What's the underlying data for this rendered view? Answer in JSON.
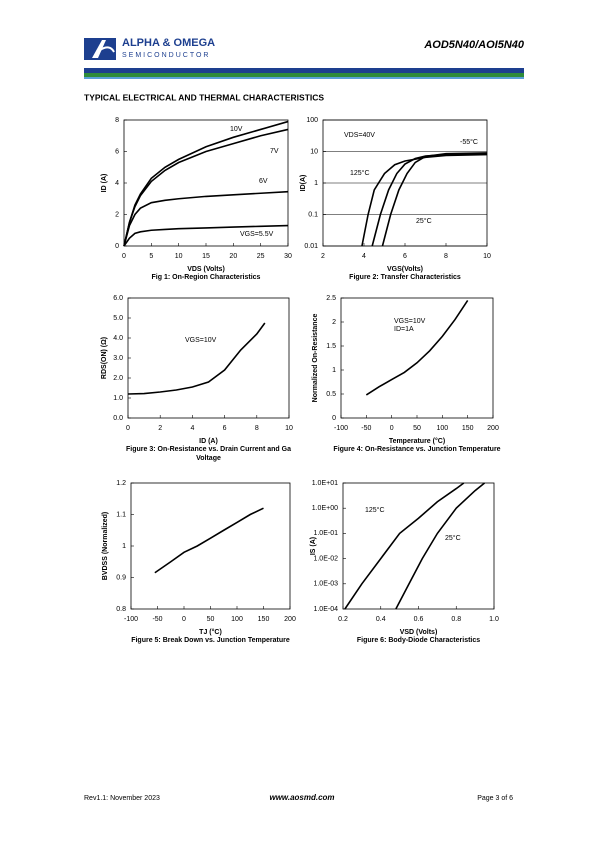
{
  "header": {
    "logo_text": "ALPHA & OMEGA",
    "logo_subtext": "SEMICONDUCTOR",
    "part_number": "AOD5N40/AOI5N40"
  },
  "section_title": "TYPICAL ELECTRICAL AND THERMAL CHARACTERISTICS",
  "chart_data": [
    {
      "type": "line",
      "caption": [
        "Fig 1: On-Region Characteristics"
      ],
      "xlabel": "VDS (Volts)",
      "ylabel": "ID (A)",
      "xlim": [
        0,
        30
      ],
      "xticks": [
        0,
        5,
        10,
        15,
        20,
        25,
        30
      ],
      "ylim": [
        0,
        8
      ],
      "yticks": [
        0,
        2,
        4,
        6,
        8
      ],
      "grid": false,
      "x": [
        0,
        1,
        2,
        3,
        5,
        7.5,
        10,
        15,
        20,
        25,
        30
      ],
      "series": [
        {
          "name": "10V",
          "color": "#000000",
          "values": [
            0,
            1.5,
            2.6,
            3.3,
            4.3,
            5.0,
            5.5,
            6.3,
            6.9,
            7.4,
            7.9
          ]
        },
        {
          "name": "7V",
          "color": "#000000",
          "values": [
            0,
            1.5,
            2.5,
            3.2,
            4.1,
            4.8,
            5.3,
            6.0,
            6.5,
            7.0,
            7.4
          ]
        },
        {
          "name": "6V",
          "color": "#000000",
          "values": [
            0,
            1.3,
            2.0,
            2.4,
            2.75,
            2.9,
            3.0,
            3.15,
            3.25,
            3.35,
            3.45
          ]
        },
        {
          "name": "VGS=5.5V",
          "color": "#000000",
          "values": [
            0,
            0.5,
            0.8,
            0.9,
            1.0,
            1.05,
            1.1,
            1.15,
            1.2,
            1.25,
            1.3
          ]
        }
      ]
    },
    {
      "type": "line",
      "caption": [
        "Figure 2: Transfer Characteristics"
      ],
      "xlabel": "VGS(Volts)",
      "ylabel": "ID(A)",
      "xlim": [
        2,
        10
      ],
      "xticks": [
        2,
        4,
        6,
        8,
        10
      ],
      "ylim": [
        0.01,
        100
      ],
      "yticks": [
        0.01,
        0.1,
        1,
        10,
        100
      ],
      "ylog": true,
      "grid": true,
      "annotations": [
        "VDS=40V"
      ],
      "series": [
        {
          "name": "125°C",
          "color": "#000000",
          "x": [
            3.9,
            4.2,
            4.5,
            5.0,
            5.5,
            6,
            7,
            8,
            10
          ],
          "values": [
            0.01,
            0.1,
            0.6,
            2,
            3.8,
            5,
            6.5,
            7.5,
            8
          ]
        },
        {
          "name": "25°C",
          "color": "#000000",
          "x": [
            4.4,
            4.8,
            5.2,
            5.6,
            6,
            6.5,
            7,
            8,
            10
          ],
          "values": [
            0.01,
            0.1,
            0.6,
            2,
            4,
            6,
            7.2,
            8,
            8.5
          ]
        },
        {
          "name": "-55°C",
          "color": "#000000",
          "x": [
            4.9,
            5.3,
            5.7,
            6.1,
            6.5,
            7,
            8,
            10
          ],
          "values": [
            0.01,
            0.1,
            0.6,
            2,
            4.5,
            7,
            8.5,
            9
          ]
        }
      ]
    },
    {
      "type": "line",
      "caption": [
        "Figure 3: On-Resistance vs. Drain Current and Ga",
        "Voltage"
      ],
      "xlabel": "ID (A)",
      "ylabel": "RDS(ON) (Ω)",
      "xlim": [
        0,
        10
      ],
      "xticks": [
        0,
        2,
        4,
        6,
        8,
        10
      ],
      "ylim": [
        0,
        6
      ],
      "yticks": [
        {
          "value": 0,
          "label": "0.0"
        },
        {
          "value": 1,
          "label": "1.0"
        },
        {
          "value": 2,
          "label": "2.0"
        },
        {
          "value": 3,
          "label": "3.0"
        },
        {
          "value": 4,
          "label": "4.0"
        },
        {
          "value": 5,
          "label": "5.0"
        },
        {
          "value": 6,
          "label": "6.0"
        }
      ],
      "grid": false,
      "series": [
        {
          "name": "VGS=10V",
          "color": "#000000",
          "x": [
            0,
            1,
            2,
            3,
            4,
            5,
            6,
            7,
            8,
            8.5
          ],
          "values": [
            1.2,
            1.22,
            1.3,
            1.4,
            1.55,
            1.8,
            2.4,
            3.4,
            4.2,
            4.75
          ]
        }
      ]
    },
    {
      "type": "line",
      "caption": [
        "Figure 4: On-Resistance vs. Junction Temperature"
      ],
      "xlabel": "Temperature (°C)",
      "ylabel": "Normalized On-Resistance",
      "xlim": [
        -100,
        200
      ],
      "xticks": [
        -100,
        -50,
        0,
        50,
        100,
        150,
        200
      ],
      "ylim": [
        0,
        2.5
      ],
      "yticks": [
        0,
        0.5,
        1,
        1.5,
        2,
        2.5
      ],
      "grid": false,
      "annotations": [
        "VGS=10V",
        "ID=1A"
      ],
      "series": [
        {
          "name": "",
          "color": "#000000",
          "x": [
            -50,
            -25,
            0,
            25,
            50,
            75,
            100,
            125,
            150
          ],
          "values": [
            0.48,
            0.65,
            0.8,
            0.95,
            1.15,
            1.4,
            1.7,
            2.05,
            2.45
          ]
        }
      ]
    },
    {
      "type": "line",
      "caption": [
        "Figure 5: Break Down vs. Junction Temperature"
      ],
      "xlabel": "TJ (°C)",
      "ylabel": "BVDSS (Normalized)",
      "xlim": [
        -100,
        200
      ],
      "xticks": [
        -100,
        -50,
        0,
        50,
        100,
        150,
        200
      ],
      "ylim": [
        0.8,
        1.2
      ],
      "yticks": [
        0.8,
        0.9,
        1,
        1.1,
        1.2
      ],
      "grid": false,
      "series": [
        {
          "name": "",
          "color": "#000000",
          "x": [
            -55,
            -25,
            0,
            25,
            50,
            75,
            100,
            125,
            150
          ],
          "values": [
            0.915,
            0.95,
            0.98,
            1.0,
            1.025,
            1.05,
            1.075,
            1.1,
            1.12
          ]
        }
      ]
    },
    {
      "type": "line",
      "caption": [
        "Figure 6: Body-Diode Characteristics"
      ],
      "xlabel": "VSD (Volts)",
      "ylabel": "IS (A)",
      "xlim": [
        0.2,
        1.0
      ],
      "xticks": [
        0.2,
        0.4,
        0.6,
        0.8,
        {
          "value": 1.0,
          "label": "1.0"
        }
      ],
      "ylim": [
        0.0001,
        10
      ],
      "ylog": true,
      "yticks": [
        {
          "value": 0.0001,
          "label": "1.0E-04"
        },
        {
          "value": 0.001,
          "label": "1.0E-03"
        },
        {
          "value": 0.01,
          "label": "1.0E-02"
        },
        {
          "value": 0.1,
          "label": "1.0E-01"
        },
        {
          "value": 1,
          "label": "1.0E+00"
        },
        {
          "value": 10,
          "label": "1.0E+01"
        }
      ],
      "grid": false,
      "series": [
        {
          "name": "125°C",
          "color": "#000000",
          "x": [
            0.21,
            0.3,
            0.4,
            0.5,
            0.6,
            0.7,
            0.8,
            0.84
          ],
          "values": [
            0.0001,
            0.001,
            0.01,
            0.1,
            0.4,
            1.8,
            6,
            10
          ]
        },
        {
          "name": "25°C",
          "color": "#000000",
          "x": [
            0.48,
            0.55,
            0.62,
            0.7,
            0.8,
            0.9,
            0.95
          ],
          "values": [
            0.0001,
            0.001,
            0.01,
            0.1,
            1,
            5,
            10
          ]
        }
      ]
    }
  ],
  "footer": {
    "revision": "Rev1.1: November 2023",
    "website": "www.aosmd.com",
    "page": "Page 3 of 6"
  }
}
